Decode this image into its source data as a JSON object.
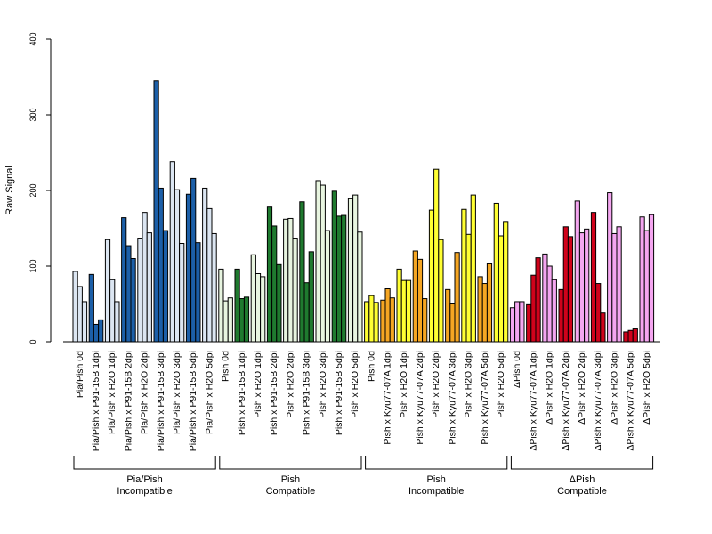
{
  "chart_data": {
    "type": "bar",
    "ylabel": "Raw Signal",
    "ylim": [
      0,
      400
    ],
    "yticks": [
      0,
      100,
      200,
      300,
      400
    ],
    "grid": false,
    "legend": "none",
    "categories": [
      "Pia/Pish 0d",
      "Pia/Pish x P91-15B 1dpi",
      "Pia/Pish x H2O 1dpi",
      "Pia/Pish x P91-15B 2dpi",
      "Pia/Pish x H2O 2dpi",
      "Pia/Pish x P91-15B 3dpi",
      "Pia/Pish x H2O 3dpi",
      "Pia/Pish x P91-15B 5dpi",
      "Pia/Pish x H2O 5dpi",
      "Pish 0d",
      "Pish x P91-15B 1dpi",
      "Pish x H2O 1dpi",
      "Pish x P91-15B 2dpi",
      "Pish x H2O 2dpi",
      "Pish x P91-15B 3dpi",
      "Pish x H2O 3dpi",
      "Pish x P91-15B 5dpi",
      "Pish x H2O 5dpi",
      "Pish 0d",
      "Pish x Kyu77-07A 1dpi",
      "Pish x H2O 1dpi",
      "Pish x Kyu77-07A 2dpi",
      "Pish x H2O 2dpi",
      "Pish x Kyu77-07A 3dpi",
      "Pish x H2O 3dpi",
      "Pish x Kyu77-07A 5dpi",
      "Pish x H2O 5dpi",
      "ΔPish 0d",
      "ΔPish x Kyu77-07A 1dpi",
      "ΔPish x H2O 1dpi",
      "ΔPish x Kyu77-07A 2dpi",
      "ΔPish x H2O 2dpi",
      "ΔPish x Kyu77-07A 3dpi",
      "ΔPish x H2O 3dpi",
      "ΔPish x Kyu77-07A 5dpi",
      "ΔPish x H2O 5dpi"
    ],
    "colors": [
      "#dce6f2",
      "#1c5fa8",
      "#dce6f2",
      "#1c5fa8",
      "#dce6f2",
      "#1c5fa8",
      "#dce6f2",
      "#1c5fa8",
      "#dce6f2",
      "#e8f5e0",
      "#1f7a2f",
      "#e8f5e0",
      "#1f7a2f",
      "#e8f5e0",
      "#1f7a2f",
      "#e8f5e0",
      "#1f7a2f",
      "#e8f5e0",
      "#ffff33",
      "#f5a623",
      "#ffff33",
      "#f5a623",
      "#ffff33",
      "#f5a623",
      "#ffff33",
      "#f5a623",
      "#ffff33",
      "#f4a6f0",
      "#d0021b",
      "#f4a6f0",
      "#d0021b",
      "#f4a6f0",
      "#d0021b",
      "#f4a6f0",
      "#d0021b",
      "#f4a6f0"
    ],
    "values": [
      [
        93,
        73,
        53
      ],
      [
        89,
        23,
        29
      ],
      [
        135,
        82,
        53
      ],
      [
        164,
        127,
        110
      ],
      [
        137,
        171,
        144
      ],
      [
        345,
        203,
        147
      ],
      [
        238,
        201,
        130
      ],
      [
        195,
        216,
        131
      ],
      [
        203,
        176,
        143
      ],
      [
        96,
        54,
        58
      ],
      [
        96,
        57,
        59
      ],
      [
        115,
        90,
        86
      ],
      [
        178,
        153,
        102
      ],
      [
        162,
        163,
        137
      ],
      [
        185,
        78,
        119
      ],
      [
        213,
        207,
        147
      ],
      [
        199,
        166,
        167
      ],
      [
        189,
        194,
        145
      ],
      [
        53,
        61,
        52
      ],
      [
        55,
        70,
        58
      ],
      [
        96,
        81,
        81
      ],
      [
        120,
        109,
        57
      ],
      [
        174,
        228,
        135
      ],
      [
        69,
        50,
        118
      ],
      [
        175,
        142,
        194
      ],
      [
        86,
        77,
        103
      ],
      [
        183,
        140,
        159
      ],
      [
        45,
        53,
        53
      ],
      [
        49,
        88,
        111
      ],
      [
        116,
        100,
        82
      ],
      [
        69,
        152,
        139
      ],
      [
        186,
        144,
        149
      ],
      [
        171,
        77,
        38
      ],
      [
        197,
        143,
        152
      ],
      [
        13,
        15,
        17
      ],
      [
        165,
        147,
        168
      ]
    ],
    "groups": [
      {
        "line1": "Pia/Pish",
        "line2": "Incompatible"
      },
      {
        "line1": "Pish",
        "line2": "Compatible"
      },
      {
        "line1": "Pish",
        "line2": "Incompatible"
      },
      {
        "line1": "ΔPish",
        "line2": "Compatible"
      }
    ]
  }
}
